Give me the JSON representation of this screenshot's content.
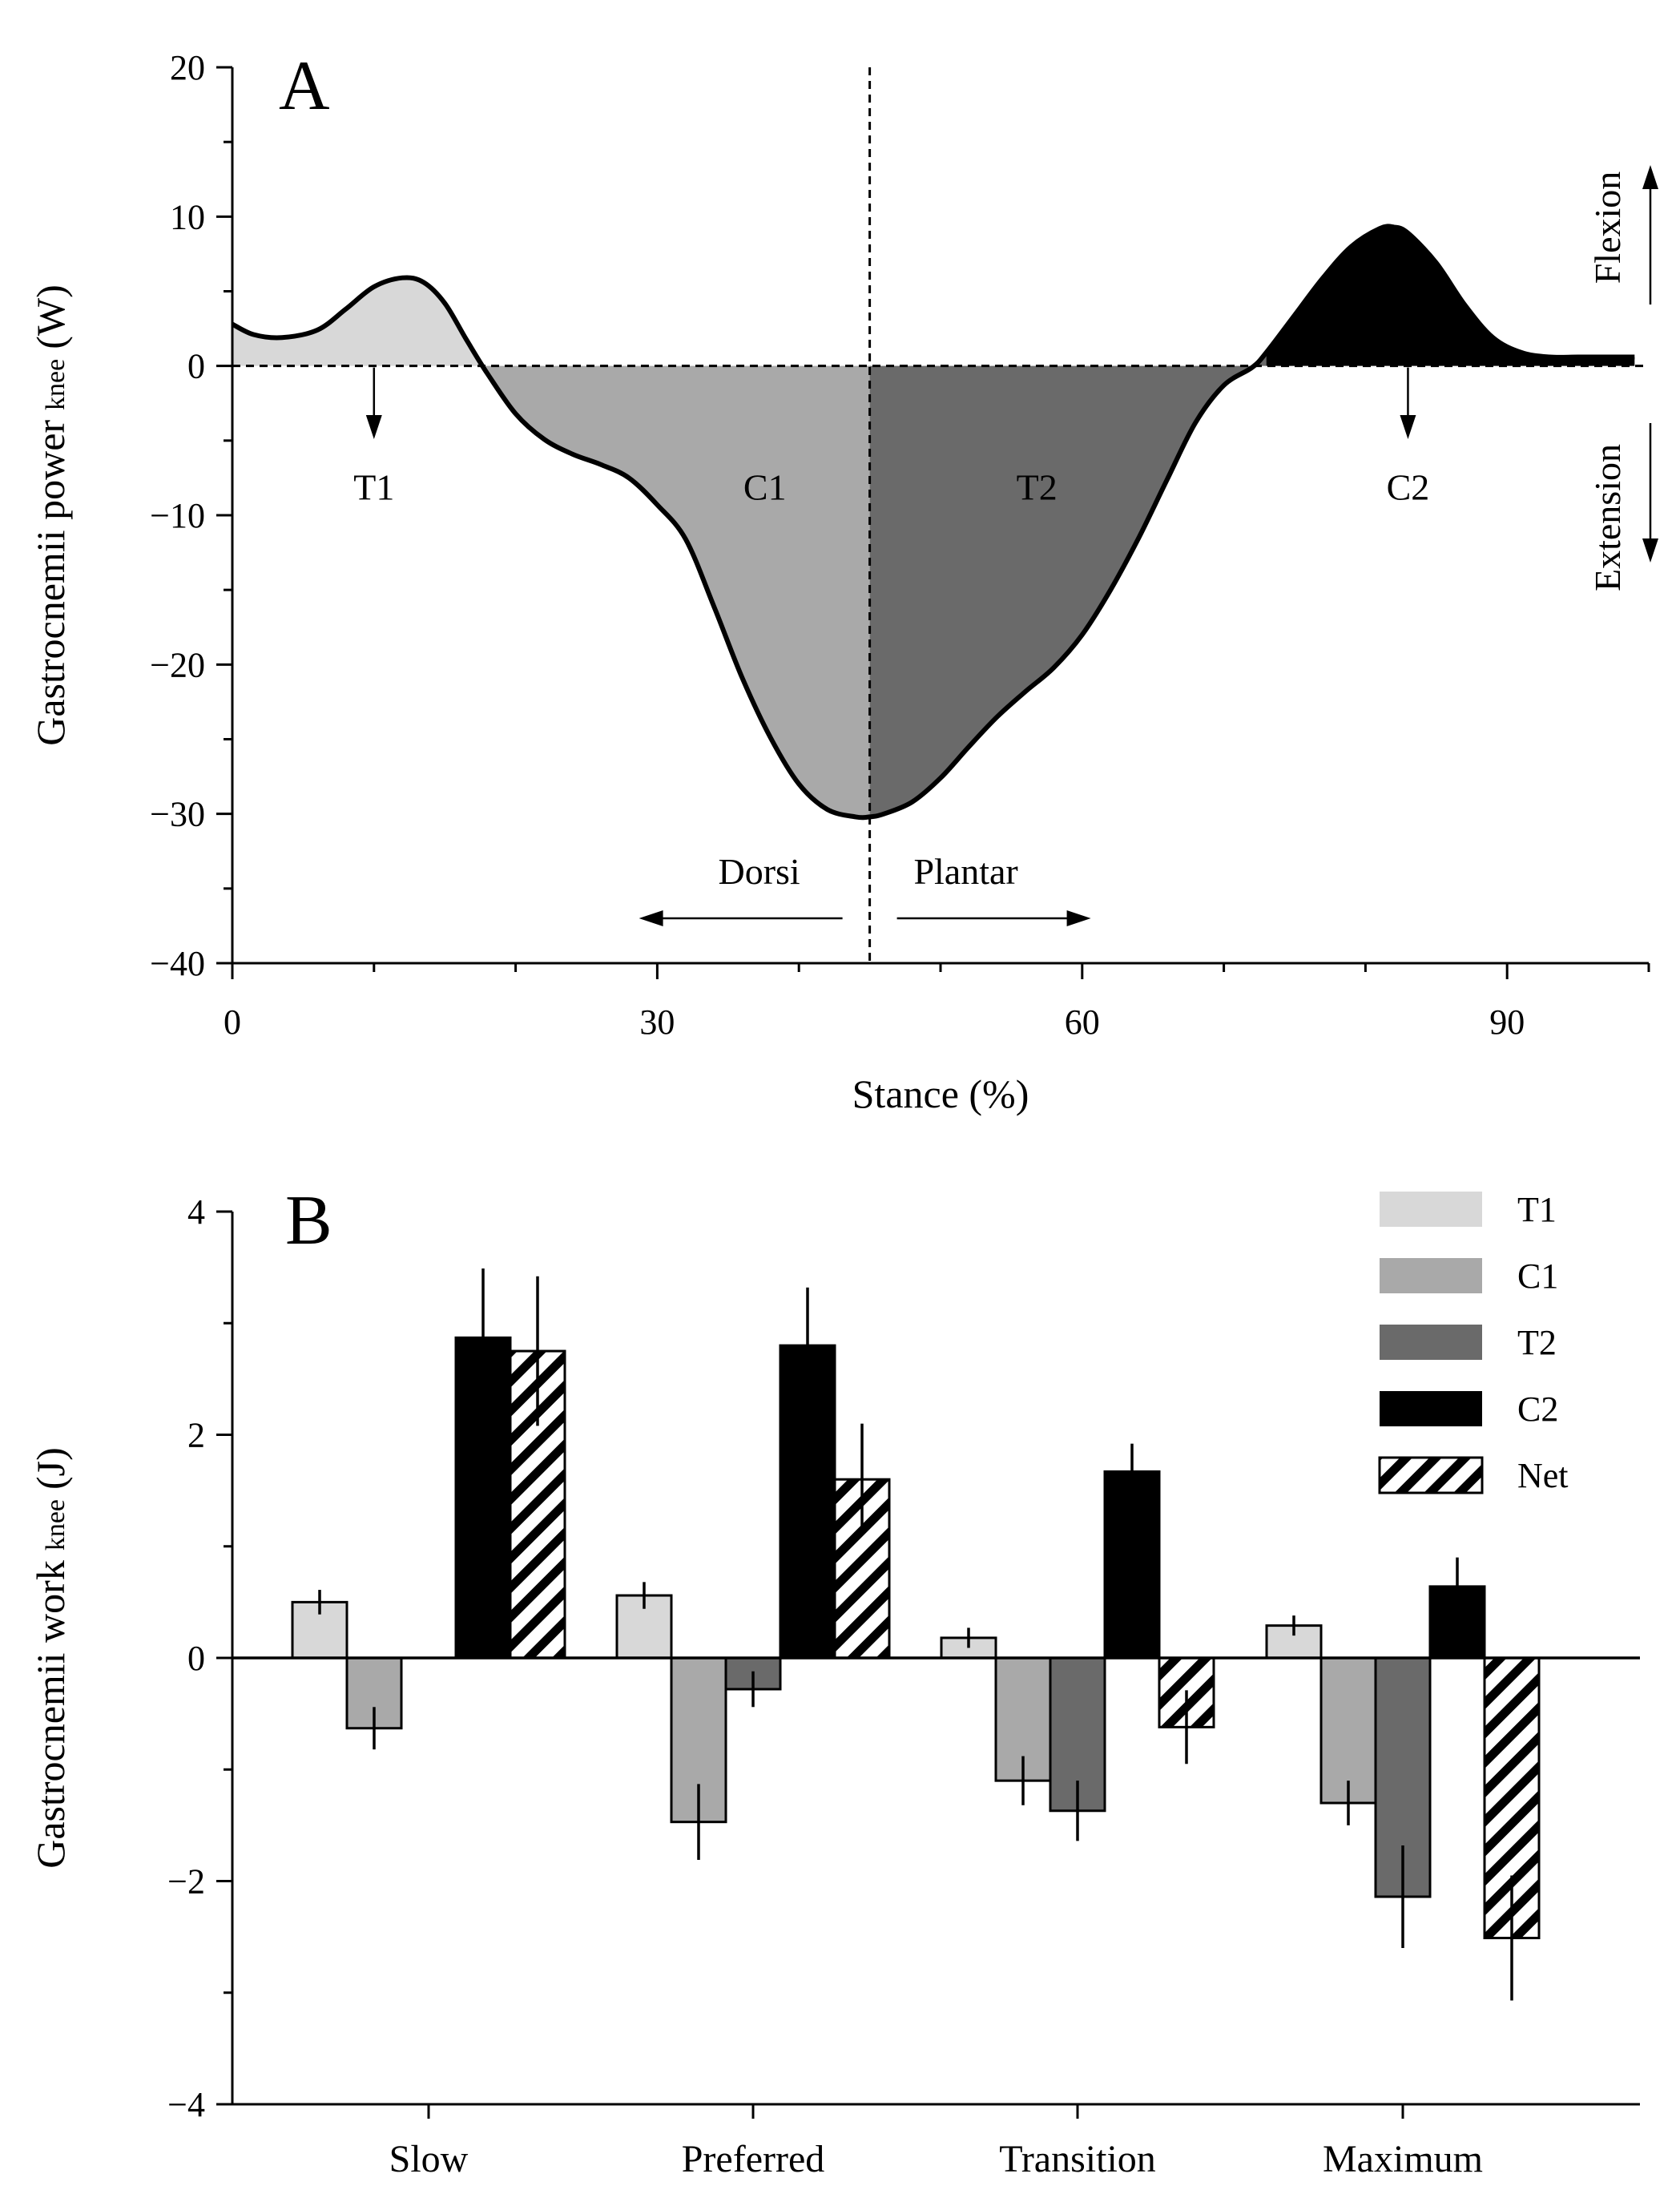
{
  "colors": {
    "T1": "#d8d8d8",
    "C1": "#a9a9a9",
    "T2": "#6a6a6a",
    "C2": "#000000",
    "axis": "#000000"
  },
  "chart_data": [
    {
      "panel": "A",
      "type": "area",
      "panel_label": "A",
      "ylabel_main": "Gastrocnemii power",
      "ylabel_sub": "knee",
      "ylabel_unit": "(W)",
      "xlabel": "Stance (%)",
      "xlim": [
        0,
        100
      ],
      "ylim": [
        -40,
        20
      ],
      "x_ticks": [
        0,
        30,
        60,
        90
      ],
      "y_ticks": [
        20,
        10,
        0,
        -10,
        -20,
        -30,
        -40
      ],
      "y_tick_labels": [
        "20",
        "10",
        "0",
        "−10",
        "−20",
        "−30",
        "−40"
      ],
      "x_minor_step": 10,
      "y_minor_step": 5,
      "curve": {
        "x": [
          0,
          1.5,
          3.5,
          6,
          8,
          10,
          12,
          13.5,
          15,
          16.5,
          18,
          20,
          22,
          24,
          26,
          28,
          30,
          32,
          34,
          36,
          38,
          40,
          42,
          44,
          45,
          46,
          48,
          50,
          52,
          54,
          56,
          58,
          60,
          62,
          64,
          66,
          68,
          70,
          72,
          73,
          75,
          77,
          79,
          81,
          82,
          83,
          85,
          87,
          89,
          91,
          93,
          95,
          97,
          99
        ],
        "y": [
          2.8,
          2.1,
          1.9,
          2.4,
          3.8,
          5.3,
          5.9,
          5.6,
          4.2,
          1.8,
          -0.5,
          -3.2,
          -4.9,
          -5.9,
          -6.6,
          -7.5,
          -9.3,
          -11.6,
          -16.1,
          -20.9,
          -24.9,
          -28.0,
          -29.7,
          -30.2,
          -30.2,
          -30.0,
          -29.2,
          -27.6,
          -25.5,
          -23.5,
          -21.8,
          -20.2,
          -18.0,
          -15.0,
          -11.5,
          -7.6,
          -3.8,
          -1.3,
          -0.1,
          0.9,
          3.4,
          5.9,
          8.0,
          9.2,
          9.3,
          8.9,
          6.9,
          4.1,
          1.9,
          0.9,
          0.6,
          0.6,
          0.6,
          0.6
        ]
      },
      "dashed_vline_x": 45,
      "regions": [
        {
          "name": "T1",
          "label": "T1",
          "x_start": 0,
          "x_end": 17.7,
          "color_key": "T1"
        },
        {
          "name": "C1",
          "label": "C1",
          "x_start": 17.7,
          "x_end": 45,
          "color_key": "C1"
        },
        {
          "name": "T2",
          "label": "T2",
          "x_start": 45,
          "x_end": 73,
          "color_key": "T2"
        },
        {
          "name": "C2",
          "label": "C2",
          "x_start": 73,
          "x_end": 99,
          "color_key": "C2"
        }
      ],
      "region_labels": [
        {
          "text": "T1",
          "x": 10,
          "y": -8.1,
          "arrow": true
        },
        {
          "text": "C1",
          "x": 37.6,
          "y": -8.1,
          "arrow": false
        },
        {
          "text": "T2",
          "x": 56.8,
          "y": -8.1,
          "arrow": false
        },
        {
          "text": "C2",
          "x": 83,
          "y": -8.1,
          "arrow": true
        }
      ],
      "annotations": {
        "dorsi": "Dorsi",
        "plantar": "Plantar",
        "flexion": "Flexion",
        "extension": "Extension"
      }
    },
    {
      "panel": "B",
      "type": "bar",
      "panel_label": "B",
      "ylabel_main": "Gastrocnemii work",
      "ylabel_sub": "knee",
      "ylabel_unit": "(J)",
      "xlabel": "",
      "ylim": [
        -4,
        4
      ],
      "y_ticks": [
        4,
        2,
        0,
        -2,
        -4
      ],
      "y_tick_labels": [
        "4",
        "2",
        "0",
        "−2",
        "−4"
      ],
      "y_minor_step": 1,
      "categories": [
        "Slow",
        "Preferred",
        "Transition",
        "Maximum"
      ],
      "series": [
        {
          "name": "T1",
          "color_key": "T1",
          "values": [
            0.5,
            0.56,
            0.18,
            0.29
          ],
          "errors": [
            0.11,
            0.12,
            0.09,
            0.09
          ]
        },
        {
          "name": "C1",
          "color_key": "C1",
          "values": [
            -0.63,
            -1.47,
            -1.1,
            -1.3
          ],
          "errors": [
            0.19,
            0.34,
            0.22,
            0.2
          ]
        },
        {
          "name": "T2",
          "color_key": "T2",
          "values": [
            0,
            -0.28,
            -1.37,
            -2.14
          ],
          "errors": [
            0,
            0.16,
            0.27,
            0.46
          ]
        },
        {
          "name": "C2",
          "color_key": "C2",
          "values": [
            2.87,
            2.8,
            1.67,
            0.64
          ],
          "errors": [
            0.62,
            0.52,
            0.25,
            0.26
          ]
        },
        {
          "name": "Net",
          "color_key": "hatch",
          "values": [
            2.75,
            1.6,
            -0.62,
            -2.51
          ],
          "errors": [
            0.67,
            0.5,
            0.33,
            0.56
          ]
        }
      ],
      "legend_position": "top-right"
    }
  ]
}
